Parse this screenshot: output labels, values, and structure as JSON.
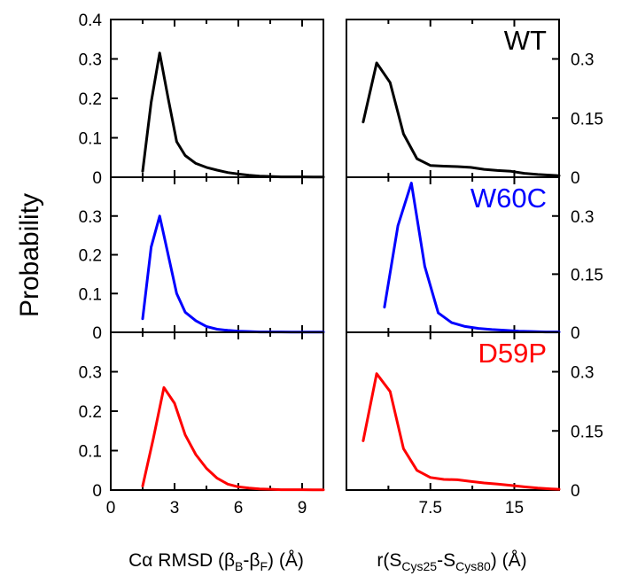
{
  "chart_data": {
    "type": "line",
    "ylabel": "Probability",
    "legend": "inside-top-right",
    "grid": false,
    "columns": [
      {
        "xlabel": {
          "pre": "Cα RMSD (β",
          "sub1": "B",
          "mid": "-β",
          "sub2": "F",
          "post": ") (Å)"
        },
        "xlim": [
          0,
          10
        ],
        "x_major_ticks": [
          0,
          3,
          6,
          9
        ],
        "x_tick_labels": [
          "0",
          "3",
          "6",
          "9"
        ],
        "x_minor_ticks": [
          1.5,
          4.5,
          7.5
        ],
        "y_axis_side": "left"
      },
      {
        "xlabel": {
          "pre": "r(S",
          "sub1": "Cys25",
          "mid": "-S",
          "sub2": "Cys80",
          "post": ") (Å)"
        },
        "xlim": [
          0,
          19
        ],
        "x_major_ticks": [
          0,
          7.5,
          15
        ],
        "x_tick_labels": [
          "",
          "7.5",
          "15"
        ],
        "x_minor_ticks": [
          3.75,
          11.25
        ],
        "y_axis_side": "right"
      }
    ],
    "rows": [
      {
        "label": "WT",
        "color": "#000000",
        "ylim_left": [
          0,
          0.4
        ],
        "y_ticks_left": [
          0,
          0.1,
          0.2,
          0.3,
          0.4
        ],
        "y_tick_labels_left": [
          "0",
          "0.1",
          "0.2",
          "0.3",
          "0.4"
        ],
        "ylim_right": [
          0,
          0.4
        ],
        "y_ticks_right": [
          0,
          0.15,
          0.3
        ],
        "y_tick_labels_right": [
          "0",
          "0.15",
          "0.3"
        ],
        "series": [
          {
            "x": [
              1.5,
              1.9,
              2.3,
              2.7,
              3.1,
              3.5,
              4.0,
              4.5,
              5.0,
              5.5,
              6.0,
              6.5,
              7.0,
              7.5,
              8.0,
              8.5,
              9.0,
              9.5,
              10.0
            ],
            "y": [
              0.015,
              0.19,
              0.315,
              0.2,
              0.09,
              0.055,
              0.035,
              0.025,
              0.018,
              0.012,
              0.008,
              0.005,
              0.003,
              0.002,
              0.001,
              0.001,
              0.001,
              0.0005,
              0.0005
            ]
          },
          {
            "x": [
              1.5,
              2.7,
              3.9,
              5.1,
              6.3,
              7.5,
              8.7,
              9.9,
              11.1,
              12.3,
              13.5,
              14.7,
              15.9,
              17.1,
              18.3,
              19.0
            ],
            "y": [
              0.14,
              0.29,
              0.24,
              0.11,
              0.047,
              0.03,
              0.028,
              0.027,
              0.025,
              0.02,
              0.017,
              0.015,
              0.01,
              0.007,
              0.005,
              0.004
            ]
          }
        ]
      },
      {
        "label": "W60C",
        "color": "#0000ff",
        "ylim_left": [
          0,
          0.4
        ],
        "y_ticks_left": [
          0,
          0.1,
          0.2,
          0.3
        ],
        "y_tick_labels_left": [
          "0",
          "0.1",
          "0.2",
          "0.3"
        ],
        "ylim_right": [
          0,
          0.4
        ],
        "y_ticks_right": [
          0,
          0.15,
          0.3
        ],
        "y_tick_labels_right": [
          "0",
          "0.15",
          "0.3"
        ],
        "series": [
          {
            "x": [
              1.5,
              1.9,
              2.3,
              2.7,
              3.1,
              3.5,
              4.0,
              4.5,
              5.0,
              5.5,
              6.0,
              6.5,
              7.0,
              7.5,
              8.0,
              8.5,
              9.0,
              9.5,
              10.0
            ],
            "y": [
              0.035,
              0.22,
              0.3,
              0.2,
              0.1,
              0.052,
              0.03,
              0.015,
              0.008,
              0.005,
              0.003,
              0.002,
              0.001,
              0.001,
              0.001,
              0.0005,
              0.0005,
              0.0005,
              0.0005
            ]
          },
          {
            "x": [
              3.4,
              4.6,
              5.8,
              7.0,
              8.2,
              9.4,
              10.6,
              11.8,
              13.0,
              14.2,
              15.4,
              16.6,
              17.8,
              19.0
            ],
            "y": [
              0.065,
              0.275,
              0.385,
              0.17,
              0.05,
              0.025,
              0.015,
              0.01,
              0.007,
              0.005,
              0.003,
              0.002,
              0.001,
              0.001
            ]
          }
        ]
      },
      {
        "label": "D59P",
        "color": "#ff0000",
        "ylim_left": [
          0,
          0.4
        ],
        "y_ticks_left": [
          0,
          0.1,
          0.2,
          0.3
        ],
        "y_tick_labels_left": [
          "0",
          "0.1",
          "0.2",
          "0.3"
        ],
        "ylim_right": [
          0,
          0.4
        ],
        "y_ticks_right": [
          0,
          0.15,
          0.3
        ],
        "y_tick_labels_right": [
          "0",
          "0.15",
          "0.3"
        ],
        "series": [
          {
            "x": [
              1.5,
              2.0,
              2.5,
              3.0,
              3.5,
              4.0,
              4.5,
              5.0,
              5.5,
              6.0,
              6.5,
              7.0,
              7.5,
              8.0,
              8.5,
              9.0,
              9.5,
              10.0
            ],
            "y": [
              0.01,
              0.13,
              0.26,
              0.22,
              0.14,
              0.09,
              0.055,
              0.03,
              0.015,
              0.008,
              0.005,
              0.003,
              0.002,
              0.001,
              0.001,
              0.001,
              0.0005,
              0.0005
            ]
          },
          {
            "x": [
              1.5,
              2.7,
              3.9,
              5.1,
              6.3,
              7.5,
              8.7,
              9.9,
              11.1,
              12.3,
              13.5,
              14.7,
              15.9,
              17.1,
              18.3,
              19.0
            ],
            "y": [
              0.125,
              0.295,
              0.25,
              0.105,
              0.05,
              0.032,
              0.027,
              0.026,
              0.022,
              0.018,
              0.015,
              0.012,
              0.008,
              0.005,
              0.003,
              0.002
            ]
          }
        ]
      }
    ]
  }
}
